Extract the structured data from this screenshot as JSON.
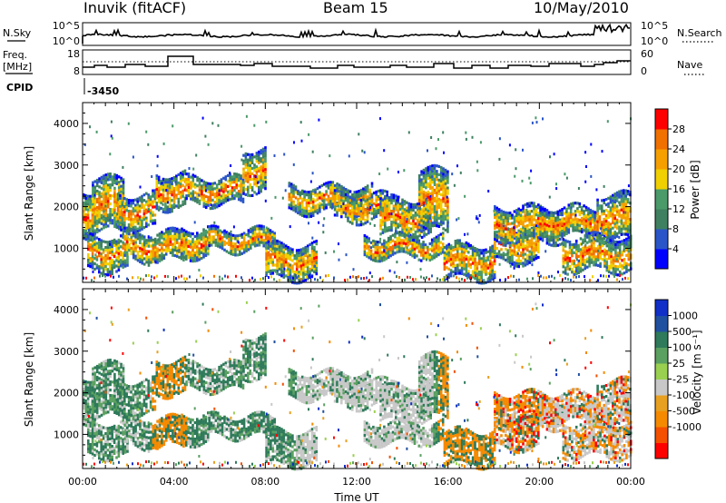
{
  "header": {
    "station": "Inuvik (fitACF)",
    "beam": "Beam 15",
    "date": "10/May/2010"
  },
  "top_panels": {
    "nsky_label": "N.Sky",
    "nsky_ticks": [
      "10^5",
      "10^0"
    ],
    "nsearch_label": "N.Search",
    "nsearch_ticks": [
      "10^5",
      "10^0"
    ],
    "freq_label_1": "Freq.",
    "freq_label_2": "[MHz]",
    "freq_ticks": [
      "18",
      "8"
    ],
    "nave_label": "Nave",
    "nave_ticks": [
      "60",
      "0"
    ],
    "cpid_label": "CPID",
    "cpid_value": "-3450"
  },
  "chart_data": [
    {
      "type": "heatmap",
      "name": "power",
      "ylabel": "Slant Range [km]",
      "xlabel": "",
      "xlim": [
        0,
        24
      ],
      "ylim": [
        180,
        4500
      ],
      "yticks": [
        1000,
        2000,
        3000,
        4000
      ],
      "xticks": [
        0,
        4,
        8,
        12,
        16,
        20,
        24
      ],
      "colorbar": {
        "label": "Power [dB]",
        "ticks": [
          "28",
          "24",
          "20",
          "16",
          "12",
          "8",
          "4"
        ],
        "colors": [
          "#0000ff",
          "#2a55c8",
          "#3f8060",
          "#4a9a6a",
          "#f0d000",
          "#f5a000",
          "#f07000",
          "#ff0000"
        ]
      }
    },
    {
      "type": "heatmap",
      "name": "velocity",
      "ylabel": "Slant Range [km]",
      "xlabel": "Time UT",
      "xlim": [
        0,
        24
      ],
      "ylim": [
        180,
        4500
      ],
      "yticks": [
        1000,
        2000,
        3000,
        4000
      ],
      "xticks": [
        0,
        4,
        8,
        12,
        16,
        20,
        24
      ],
      "xticklabels": [
        "00:00",
        "04:00",
        "08:00",
        "12:00",
        "16:00",
        "20:00",
        "00:00"
      ],
      "colorbar": {
        "label": "Velocity [m s⁻¹]",
        "ticks": [
          "1000",
          "500",
          "100",
          "25",
          "-25",
          "-100",
          "-500",
          "-1000"
        ],
        "colors": [
          "#ff0000",
          "#f45000",
          "#f58a00",
          "#e8a020",
          "#c8c8c8",
          "#9ad050",
          "#5aa060",
          "#2e7a5a",
          "#2050a0",
          "#1030c8"
        ]
      }
    }
  ],
  "bands": [
    {
      "t0": 0.0,
      "t1": 0.5,
      "r0": 1300,
      "r1": 2400
    },
    {
      "t0": 0.4,
      "t1": 1.8,
      "r0": 1400,
      "r1": 2700
    },
    {
      "t0": 1.5,
      "t1": 3.2,
      "r0": 1500,
      "r1": 2300
    },
    {
      "t0": 3.2,
      "t1": 4.5,
      "r0": 2000,
      "r1": 2800
    },
    {
      "t0": 4.5,
      "t1": 7.0,
      "r0": 2100,
      "r1": 2700
    },
    {
      "t0": 7.0,
      "t1": 8.0,
      "r0": 2400,
      "r1": 3400
    },
    {
      "t0": 0.2,
      "t1": 2.0,
      "r0": 500,
      "r1": 1300
    },
    {
      "t0": 1.8,
      "t1": 4.4,
      "r0": 700,
      "r1": 1400
    },
    {
      "t0": 4.3,
      "t1": 5.5,
      "r0": 800,
      "r1": 1500
    },
    {
      "t0": 5.5,
      "t1": 8.4,
      "r0": 950,
      "r1": 1450
    },
    {
      "t0": 8.0,
      "t1": 10.2,
      "r0": 300,
      "r1": 1100
    },
    {
      "t0": 9.0,
      "t1": 12.7,
      "r0": 1900,
      "r1": 2500
    },
    {
      "t0": 11.0,
      "t1": 13.3,
      "r0": 1700,
      "r1": 2300
    },
    {
      "t0": 12.3,
      "t1": 15.8,
      "r0": 800,
      "r1": 1300
    },
    {
      "t0": 13.0,
      "t1": 15.2,
      "r0": 1300,
      "r1": 2200
    },
    {
      "t0": 14.7,
      "t1": 16.0,
      "r0": 1400,
      "r1": 2900
    },
    {
      "t0": 15.8,
      "t1": 18.0,
      "r0": 300,
      "r1": 1100
    },
    {
      "t0": 18.0,
      "t1": 20.0,
      "r0": 700,
      "r1": 1500
    },
    {
      "t0": 18.0,
      "t1": 21.0,
      "r0": 1200,
      "r1": 2000
    },
    {
      "t0": 20.0,
      "t1": 22.5,
      "r0": 1300,
      "r1": 2000
    },
    {
      "t0": 21.0,
      "t1": 24.0,
      "r0": 450,
      "r1": 1300
    },
    {
      "t0": 22.5,
      "t1": 24.0,
      "r0": 1200,
      "r1": 2300
    }
  ]
}
